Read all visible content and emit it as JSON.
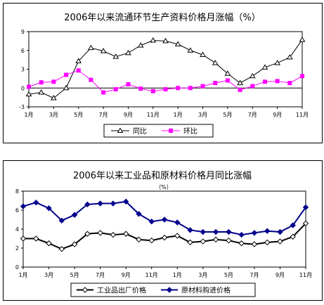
{
  "chart_data": [
    {
      "type": "line",
      "title": "2006年以来流通环节生产资料价格月涨幅（%）",
      "categories": [
        "1月",
        "2月",
        "3月",
        "4月",
        "5月",
        "6月",
        "7月",
        "8月",
        "9月",
        "10月",
        "11月",
        "12月",
        "1月",
        "2月",
        "3月",
        "4月",
        "5月",
        "6月",
        "7月",
        "8月",
        "9月",
        "10月",
        "11月"
      ],
      "x_tick_labels": [
        "1月",
        "3月",
        "5月",
        "7月",
        "9月",
        "11月",
        "1月",
        "3月",
        "5月",
        "7月",
        "9月",
        "11月"
      ],
      "ylim": [
        -3,
        9
      ],
      "y_ticks": [
        -3,
        0,
        3,
        6,
        9
      ],
      "legend_position": "bottom",
      "series": [
        {
          "name": "同比",
          "color": "#000000",
          "marker": "triangle",
          "values": [
            -1.0,
            -0.7,
            -1.6,
            0.0,
            4.3,
            6.4,
            5.9,
            5.0,
            5.6,
            6.8,
            7.6,
            7.5,
            7.0,
            6.0,
            5.3,
            4.0,
            2.3,
            0.8,
            1.9,
            3.3,
            4.0,
            4.9,
            7.7
          ]
        },
        {
          "name": "环比",
          "color": "#FF00FF",
          "marker": "square",
          "values": [
            0.2,
            0.9,
            1.0,
            2.1,
            2.8,
            1.3,
            -0.7,
            -0.2,
            0.6,
            -0.1,
            -0.5,
            -0.2,
            0.0,
            0.0,
            0.3,
            0.8,
            1.2,
            -0.3,
            0.3,
            1.0,
            1.1,
            0.8,
            1.9
          ]
        }
      ]
    },
    {
      "type": "line",
      "title": "2006年以来工业品和原材料价格月同比涨幅",
      "subtitle": "（%）",
      "categories": [
        "1月",
        "2月",
        "3月",
        "4月",
        "5月",
        "6月",
        "7月",
        "8月",
        "9月",
        "10月",
        "11月",
        "12月",
        "1月",
        "2月",
        "3月",
        "4月",
        "5月",
        "6月",
        "7月",
        "8月",
        "9月",
        "10月",
        "11月"
      ],
      "x_tick_labels": [
        "1月",
        "3月",
        "5月",
        "7月",
        "9月",
        "11月",
        "1月",
        "3月",
        "5月",
        "7月",
        "9月",
        "11月"
      ],
      "ylim": [
        0,
        8
      ],
      "y_ticks": [
        0,
        2,
        4,
        6,
        8
      ],
      "legend_position": "bottom",
      "series": [
        {
          "name": "工业品出厂价格",
          "color": "#000000",
          "marker": "diamond-open",
          "values": [
            3.0,
            3.0,
            2.5,
            1.9,
            2.4,
            3.5,
            3.6,
            3.4,
            3.5,
            2.9,
            2.8,
            3.1,
            3.3,
            2.6,
            2.7,
            2.9,
            2.8,
            2.5,
            2.4,
            2.6,
            2.7,
            3.2,
            4.6
          ]
        },
        {
          "name": "原材料购进价格",
          "color": "#00008B",
          "marker": "diamond-filled",
          "values": [
            6.4,
            6.8,
            6.2,
            4.9,
            5.5,
            6.6,
            6.7,
            6.7,
            6.9,
            5.6,
            4.8,
            5.0,
            4.7,
            3.9,
            3.7,
            3.7,
            3.7,
            3.4,
            3.6,
            3.8,
            3.7,
            4.4,
            6.3
          ]
        }
      ]
    }
  ]
}
